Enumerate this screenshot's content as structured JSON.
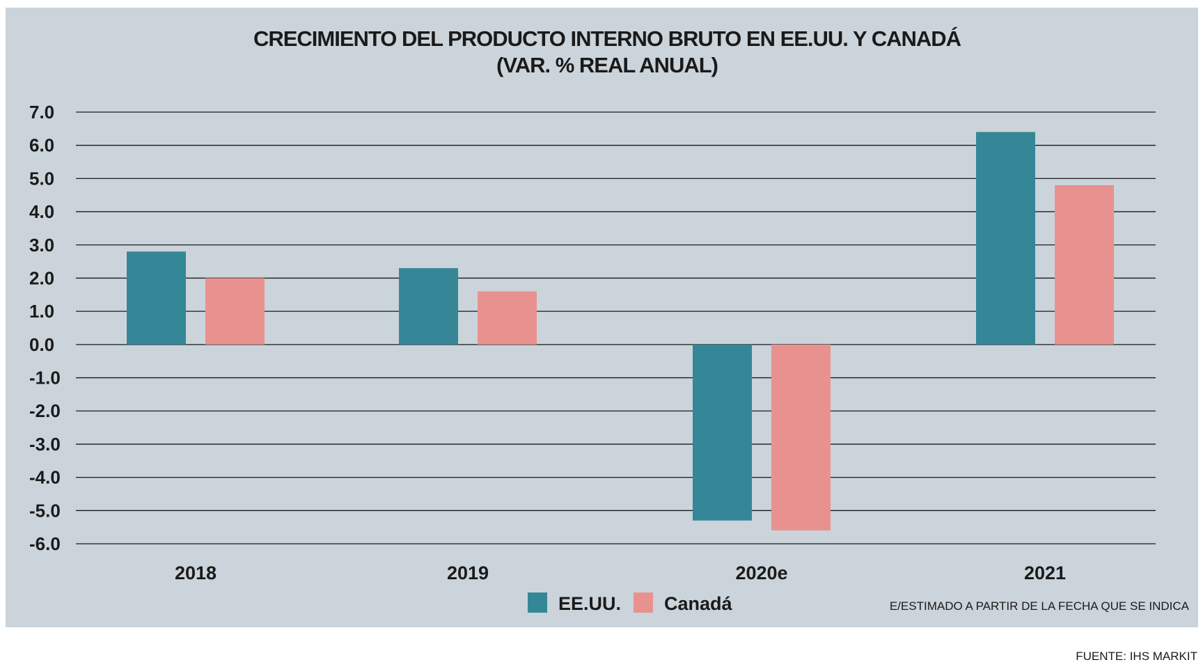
{
  "chart_data": {
    "type": "bar",
    "title": "CRECIMIENTO DEL PRODUCTO INTERNO BRUTO EN EE.UU. Y CANADÁ",
    "subtitle": "(VAR. % REAL ANUAL)",
    "categories": [
      "2018",
      "2019",
      "2020e",
      "2021"
    ],
    "series": [
      {
        "name": "EE.UU.",
        "color": "#358798",
        "values": [
          2.8,
          2.3,
          -5.3,
          6.4
        ]
      },
      {
        "name": "Canadá",
        "color": "#e8928f",
        "values": [
          2.0,
          1.6,
          -5.6,
          4.8
        ]
      }
    ],
    "ylim": [
      -6,
      7
    ],
    "yticks": [
      "7.0",
      "6.0",
      "5.0",
      "4.0",
      "3.0",
      "2.0",
      "1.0",
      "0.0",
      "-1.0",
      "-2.0",
      "-3.0",
      "-4.0",
      "-5.0",
      "-6.0"
    ],
    "grid": true,
    "legend_position": "bottom-center",
    "background_color": "#cbd4da",
    "note": "E/ESTIMADO A PARTIR DE LA FECHA QUE SE INDICA",
    "source": "FUENTE: IHS MARKIT"
  }
}
